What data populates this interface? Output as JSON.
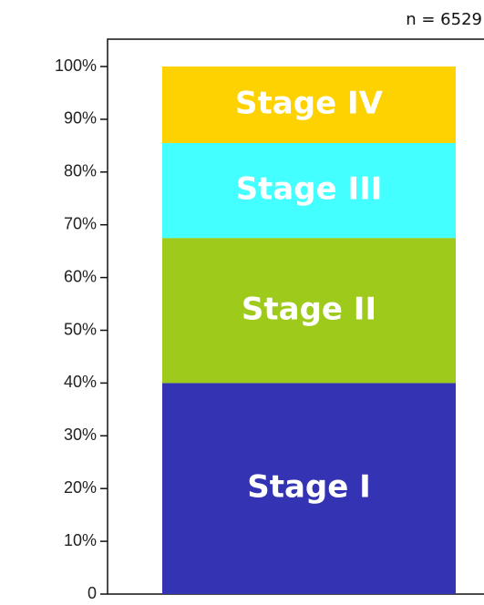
{
  "chart_data": {
    "type": "bar",
    "stacked": true,
    "title": "n = 6529",
    "categories": [
      null
    ],
    "series": [
      {
        "name": "Stage I",
        "color": "#3333b3",
        "values": [
          40
        ]
      },
      {
        "name": "Stage II",
        "color": "#9dca1b",
        "values": [
          27.5
        ]
      },
      {
        "name": "Stage III",
        "color": "#44ffff",
        "values": [
          18
        ]
      },
      {
        "name": "Stage IV",
        "color": "#fed200",
        "values": [
          14.5
        ]
      }
    ],
    "ylim": [
      0,
      100
    ],
    "yticks": [
      0,
      {
        "value": 10,
        "label": "10%"
      },
      {
        "value": 20,
        "label": "20%"
      },
      {
        "value": 30,
        "label": "30%"
      },
      {
        "value": 40,
        "label": "40%"
      },
      {
        "value": 50,
        "label": "50%"
      },
      {
        "value": 60,
        "label": "60%"
      },
      {
        "value": 70,
        "label": "70%"
      },
      {
        "value": 80,
        "label": "80%"
      },
      {
        "value": 90,
        "label": "90%"
      },
      {
        "value": 100,
        "label": "100%"
      }
    ],
    "grid": false
  }
}
